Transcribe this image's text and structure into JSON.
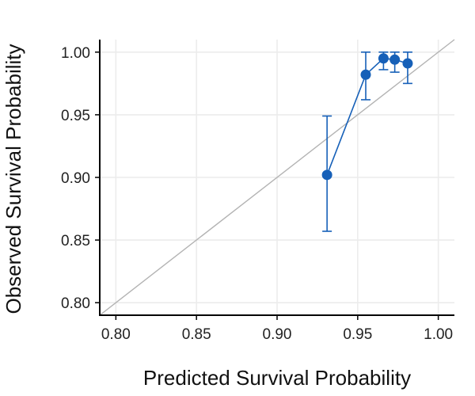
{
  "chart_data": {
    "type": "scatter",
    "xlabel": "Predicted Survival Probability",
    "ylabel": "Observed Survival Probability",
    "xlim": [
      0.79,
      1.01
    ],
    "ylim": [
      0.79,
      1.01
    ],
    "x_ticks": [
      "0.80",
      "0.85",
      "0.90",
      "0.95",
      "1.00"
    ],
    "y_ticks": [
      "0.80",
      "0.85",
      "0.90",
      "0.95",
      "1.00"
    ],
    "grid": true,
    "reference_line": {
      "from": [
        0.79,
        0.79
      ],
      "to": [
        1.01,
        1.01
      ],
      "color": "#b3b3b3"
    },
    "series": [
      {
        "color": "#1660b8",
        "points": [
          {
            "x": 0.931,
            "y": 0.902,
            "lower": 0.857,
            "upper": 0.949
          },
          {
            "x": 0.955,
            "y": 0.982,
            "lower": 0.962,
            "upper": 1.0
          },
          {
            "x": 0.966,
            "y": 0.995,
            "lower": 0.986,
            "upper": 1.0
          },
          {
            "x": 0.973,
            "y": 0.994,
            "lower": 0.984,
            "upper": 1.0
          },
          {
            "x": 0.981,
            "y": 0.991,
            "lower": 0.975,
            "upper": 1.0
          }
        ]
      }
    ]
  }
}
